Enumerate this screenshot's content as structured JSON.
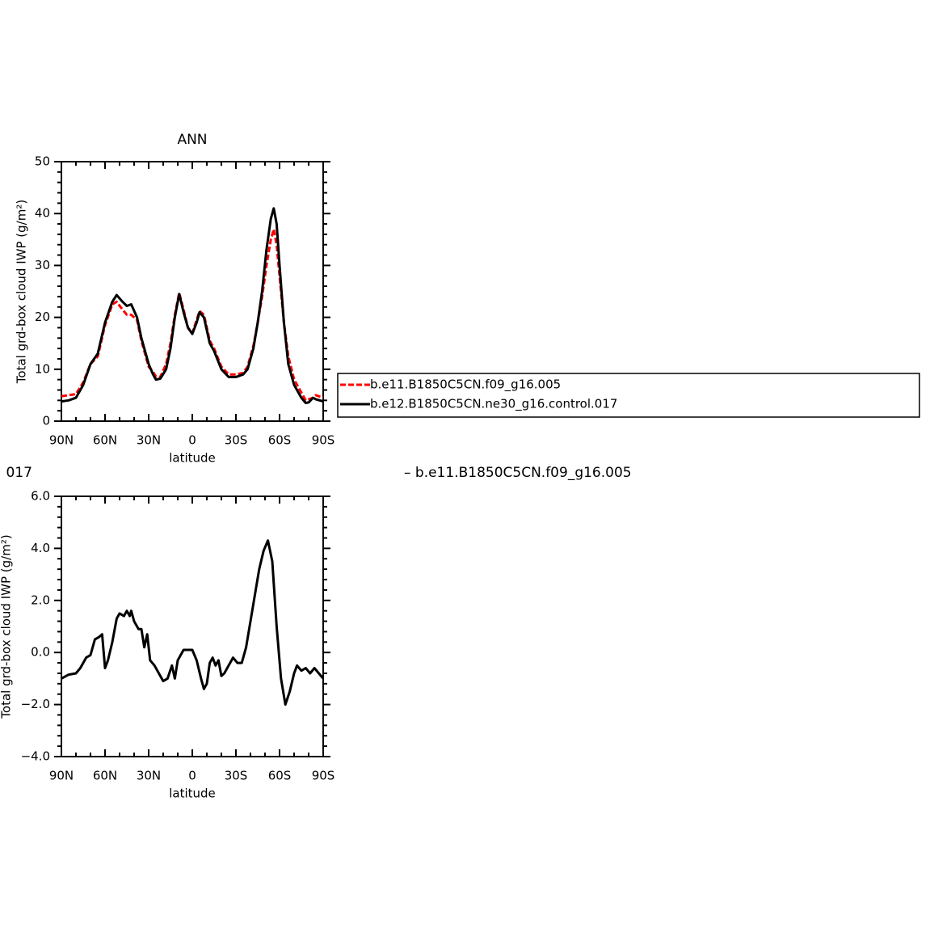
{
  "chart_data": [
    {
      "type": "line",
      "title": "ANN",
      "xlabel": "latitude",
      "ylabel": "Total grd-box cloud IWP (g/m²)",
      "xlim": [
        90,
        -90
      ],
      "ylim": [
        0,
        50
      ],
      "xticks": [
        {
          "value": 90,
          "label": "90N"
        },
        {
          "value": 60,
          "label": "60N"
        },
        {
          "value": 30,
          "label": "30N"
        },
        0,
        {
          "value": -30,
          "label": "30S"
        },
        {
          "value": -60,
          "label": "60S"
        },
        {
          "value": -90,
          "label": "90S"
        }
      ],
      "yticks": [
        0,
        10,
        20,
        30,
        40,
        50
      ],
      "legend": "right",
      "x": [
        90,
        85,
        80,
        75,
        70,
        65,
        60,
        55,
        52,
        48,
        45,
        42,
        38,
        35,
        30,
        27,
        25,
        22,
        18,
        15,
        12,
        9,
        6,
        3,
        0,
        -3,
        -5,
        -8,
        -12,
        -15,
        -20,
        -25,
        -30,
        -35,
        -38,
        -42,
        -45,
        -48,
        -51,
        -54,
        -56,
        -58,
        -60,
        -63,
        -66,
        -70,
        -75,
        -78,
        -80,
        -83,
        -85,
        -90
      ],
      "series": [
        {
          "name": "b.e11.B1850C5CN.f09_g16.005",
          "color": "#ff0000",
          "dash": true,
          "values": [
            4.8,
            5,
            5.2,
            7.5,
            11,
            12.5,
            18.5,
            22.5,
            23,
            21.5,
            20.5,
            20.5,
            19.5,
            15.5,
            10.5,
            9.5,
            8.6,
            8.5,
            11,
            15,
            20.5,
            24.7,
            21.5,
            18,
            17,
            19.5,
            21.2,
            20.5,
            15.5,
            14,
            10.5,
            9,
            9,
            9.3,
            10.5,
            14.5,
            19,
            24,
            30,
            35,
            37,
            34,
            28,
            19,
            12.5,
            8,
            5.5,
            4,
            4.2,
            4.5,
            5,
            4.5
          ]
        },
        {
          "name": "b.e12.B1850C5CN.ne30_g16.control.017",
          "color": "#000000",
          "dash": false,
          "values": [
            3.8,
            4,
            4.5,
            7,
            11,
            13,
            19,
            23,
            24.3,
            23,
            22.2,
            22.5,
            20,
            16,
            11,
            9,
            8,
            8.2,
            10,
            14,
            20,
            24.5,
            21,
            18,
            16.8,
            19,
            21,
            20,
            15,
            13.5,
            10,
            8.5,
            8.5,
            9,
            10,
            14,
            19,
            25,
            33,
            39,
            41,
            38,
            30,
            19,
            11,
            7,
            4.5,
            3.5,
            3.6,
            4.5,
            4.2,
            3.8
          ]
        }
      ]
    },
    {
      "type": "line",
      "subtitle_left": "017",
      "subtitle_right": "– b.e11.B1850C5CN.f09_g16.005",
      "xlabel": "latitude",
      "ylabel": "Total grd-box cloud IWP (g/m²)",
      "xlim": [
        90,
        -90
      ],
      "ylim": [
        -4,
        6
      ],
      "xticks": [
        {
          "value": 90,
          "label": "90N"
        },
        {
          "value": 60,
          "label": "60N"
        },
        {
          "value": 30,
          "label": "30N"
        },
        0,
        {
          "value": -30,
          "label": "30S"
        },
        {
          "value": -60,
          "label": "60S"
        },
        {
          "value": -90,
          "label": "90S"
        }
      ],
      "yticks": [
        {
          "value": -4,
          "label": "−4.0"
        },
        {
          "value": -2,
          "label": "−2.0"
        },
        {
          "value": 0,
          "label": "0.0"
        },
        {
          "value": 2,
          "label": "2.0"
        },
        {
          "value": 4,
          "label": "4.0"
        },
        {
          "value": 6,
          "label": "6.0"
        }
      ],
      "x": [
        90,
        85,
        80,
        77,
        73,
        70,
        67,
        64,
        62,
        60,
        58,
        55,
        52,
        50,
        47,
        45,
        43,
        42,
        40,
        37,
        35,
        33,
        31,
        29,
        26,
        23,
        20,
        17,
        14,
        12,
        10,
        6,
        3,
        0,
        -3,
        -6,
        -8,
        -10,
        -12,
        -14,
        -16,
        -18,
        -20,
        -22,
        -25,
        -28,
        -31,
        -34,
        -37,
        -40,
        -43,
        -46,
        -49,
        -52,
        -55,
        -58,
        -61,
        -64,
        -67,
        -70,
        -72,
        -75,
        -78,
        -81,
        -84,
        -87,
        -90
      ],
      "series": [
        {
          "color": "#000000",
          "dash": false,
          "values": [
            -1,
            -0.85,
            -0.8,
            -0.6,
            -0.2,
            -0.1,
            0.5,
            0.6,
            0.7,
            -0.6,
            -0.3,
            0.4,
            1.3,
            1.5,
            1.4,
            1.6,
            1.4,
            1.6,
            1.2,
            0.9,
            0.9,
            0.2,
            0.7,
            -0.3,
            -0.5,
            -0.8,
            -1.1,
            -1,
            -0.5,
            -1,
            -0.3,
            0.1,
            0.1,
            0.1,
            -0.3,
            -1,
            -1.4,
            -1.2,
            -0.4,
            -0.2,
            -0.5,
            -0.3,
            -0.9,
            -0.8,
            -0.5,
            -0.2,
            -0.4,
            -0.4,
            0.2,
            1.2,
            2.2,
            3.2,
            3.9,
            4.3,
            3.5,
            1,
            -1,
            -2,
            -1.5,
            -0.8,
            -0.5,
            -0.7,
            -0.6,
            -0.8,
            -0.6,
            -0.8,
            -1
          ]
        }
      ]
    }
  ]
}
